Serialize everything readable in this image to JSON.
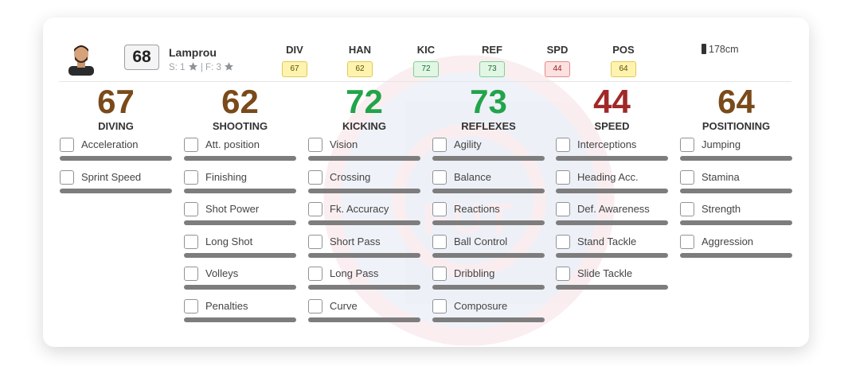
{
  "watermark": {
    "text": "FUT"
  },
  "player": {
    "name": "Lamprou",
    "rating": "68",
    "skills_prefix": "S: 1",
    "weak_foot_prefix": "| F: 3",
    "height": "178cm"
  },
  "header_stats": [
    {
      "label": "DIV",
      "value": "67",
      "color": "yellow"
    },
    {
      "label": "HAN",
      "value": "62",
      "color": "yellow"
    },
    {
      "label": "KIC",
      "value": "72",
      "color": "green"
    },
    {
      "label": "REF",
      "value": "73",
      "color": "green"
    },
    {
      "label": "SPD",
      "value": "44",
      "color": "red"
    },
    {
      "label": "POS",
      "value": "64",
      "color": "yellow"
    }
  ],
  "columns": [
    {
      "value": "67",
      "name": "DIVING",
      "color": "#7a4a1a",
      "attributes": [
        "Acceleration",
        "Sprint Speed"
      ]
    },
    {
      "value": "62",
      "name": "SHOOTING",
      "color": "#7a4a1a",
      "attributes": [
        "Att. position",
        "Finishing",
        "Shot Power",
        "Long Shot",
        "Volleys",
        "Penalties"
      ]
    },
    {
      "value": "72",
      "name": "KICKING",
      "color": "#22a44a",
      "attributes": [
        "Vision",
        "Crossing",
        "Fk. Accuracy",
        "Short Pass",
        "Long Pass",
        "Curve"
      ]
    },
    {
      "value": "73",
      "name": "REFLEXES",
      "color": "#22a44a",
      "attributes": [
        "Agility",
        "Balance",
        "Reactions",
        "Ball Control",
        "Dribbling",
        "Composure"
      ]
    },
    {
      "value": "44",
      "name": "SPEED",
      "color": "#a12828",
      "attributes": [
        "Interceptions",
        "Heading Acc.",
        "Def. Awareness",
        "Stand Tackle",
        "Slide Tackle"
      ]
    },
    {
      "value": "64",
      "name": "POSITIONING",
      "color": "#7a4a1a",
      "attributes": [
        "Jumping",
        "Stamina",
        "Strength",
        "Aggression"
      ]
    }
  ]
}
